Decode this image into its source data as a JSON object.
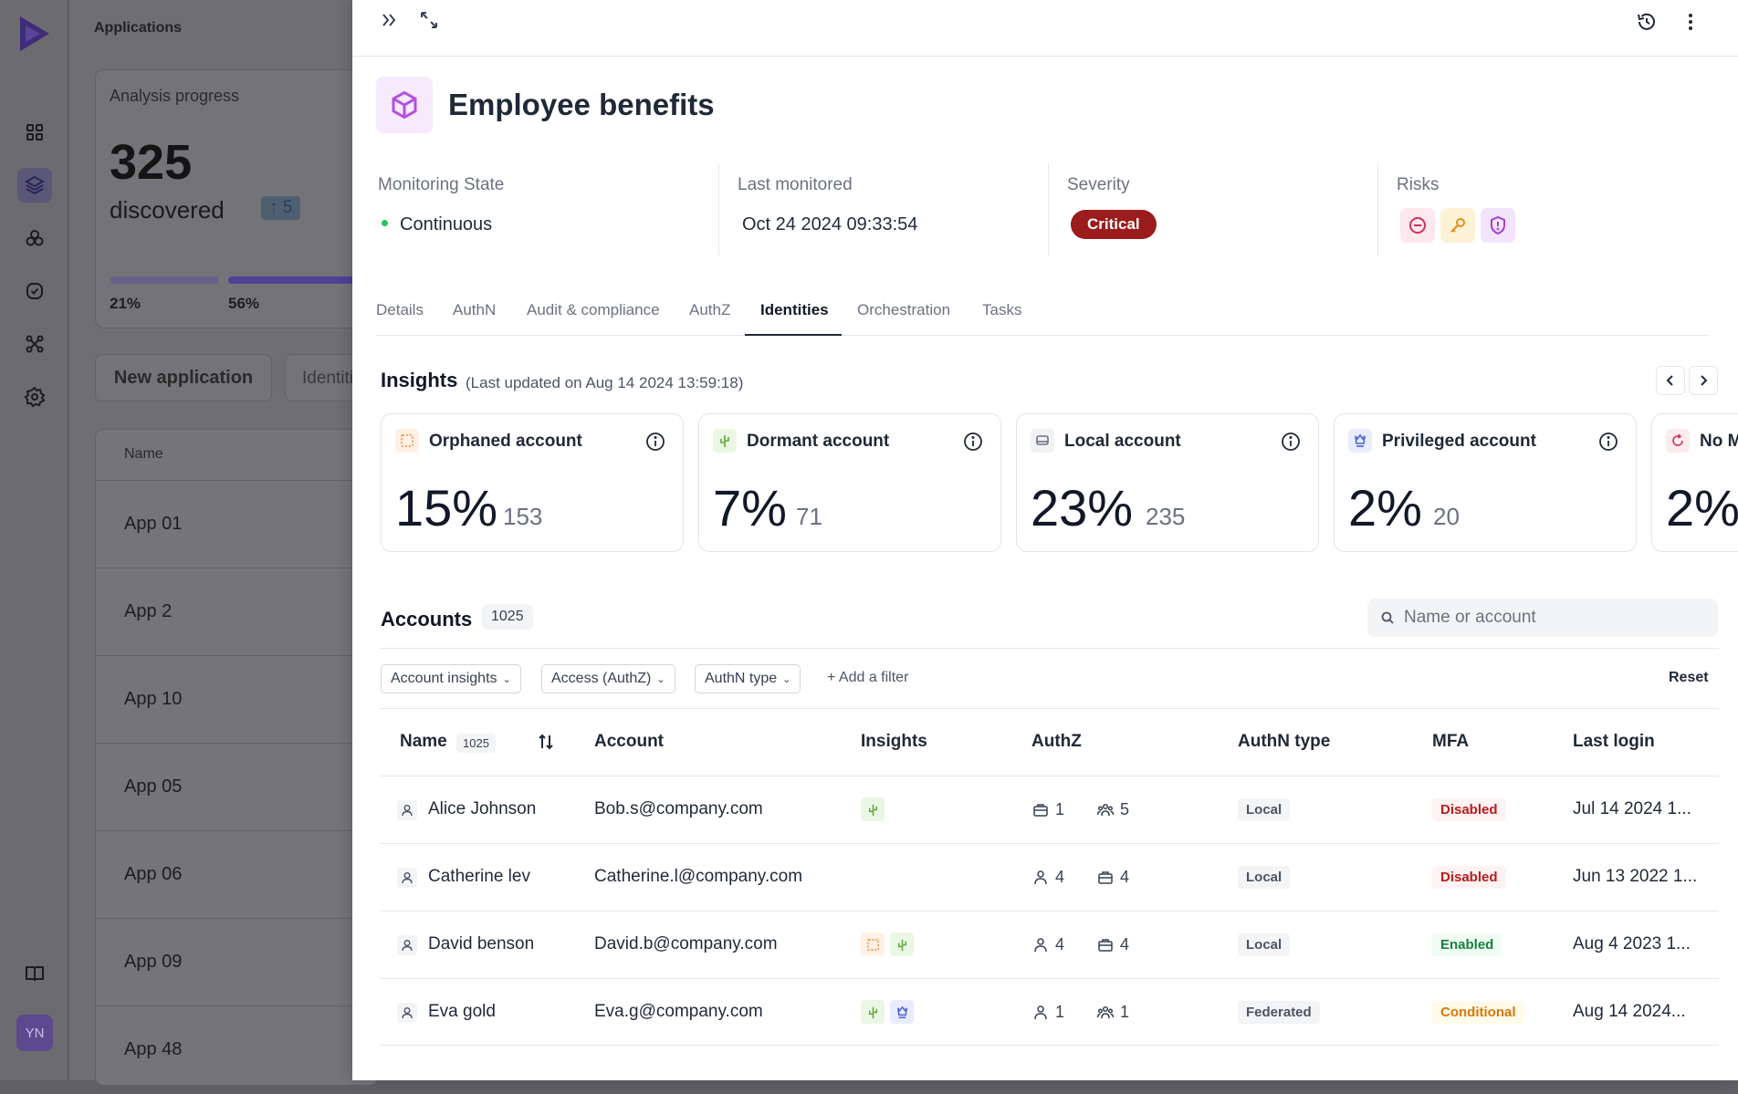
{
  "background": {
    "title": "Applications",
    "progress_card": {
      "label": "Analysis progress",
      "count": "325",
      "discovered": "discovered",
      "delta": "↑ 5",
      "pct1": "21%",
      "pct2": "56%"
    },
    "new_app_button": "New application",
    "identities_button": "Identities",
    "table_header": "Name",
    "apps": [
      "App 01",
      "App 2",
      "App 10",
      "App 05",
      "App 06",
      "App 09",
      "App 48"
    ],
    "avatar_initials": "YN"
  },
  "header": {
    "title": "Employee benefits"
  },
  "meta": {
    "monitoring_label": "Monitoring State",
    "monitoring_value": "Continuous",
    "last_monitored_label": "Last monitored",
    "last_monitored_value": "Oct 24 2024 09:33:54",
    "severity_label": "Severity",
    "severity_value": "Critical",
    "risks_label": "Risks"
  },
  "tabs": [
    "Details",
    "AuthN",
    "Audit & compliance",
    "AuthZ",
    "Identities",
    "Orchestration",
    "Tasks"
  ],
  "active_tab": "Identities",
  "insights": {
    "title": "Insights",
    "subtitle": "(Last updated on Aug 14 2024 13:59:18)",
    "cards": [
      {
        "title": "Orphaned account",
        "pct": "15%",
        "count": "153",
        "icon": "dashed-square-icon",
        "color": "#fff1e6"
      },
      {
        "title": "Dormant account",
        "pct": "7%",
        "count": "71",
        "icon": "cactus-icon",
        "color": "#eaf7e4"
      },
      {
        "title": "Local account",
        "pct": "23%",
        "count": "235",
        "icon": "local-icon",
        "color": "#f1f2f4"
      },
      {
        "title": "Privileged account",
        "pct": "2%",
        "count": "20",
        "icon": "crown-icon",
        "color": "#e8ecfc"
      },
      {
        "title": "No M",
        "pct": "2%",
        "count": "",
        "icon": "refresh-alert-icon",
        "color": "#fdecee"
      }
    ]
  },
  "accounts": {
    "title": "Accounts",
    "count": "1025",
    "search_placeholder": "Name or account",
    "filters": [
      "Account insights",
      "Access (AuthZ)",
      "AuthN type"
    ],
    "add_filter": "Add a filter",
    "reset": "Reset",
    "columns": {
      "name": "Name",
      "name_count": "1025",
      "account": "Account",
      "insights": "Insights",
      "authz": "AuthZ",
      "authn": "AuthN type",
      "mfa": "MFA",
      "last_login": "Last login"
    },
    "rows": [
      {
        "name": "Alice Johnson",
        "account": "Bob.s@company.com",
        "a1_icon": "briefcase-icon",
        "a1": "1",
        "a2_icon": "group-icon",
        "a2": "5",
        "authn": "Local",
        "mfa": "Disabled",
        "mfa_style": "red",
        "last_login": "Jul 14 2024 1..."
      },
      {
        "name": "Catherine lev",
        "account": "Catherine.l@company.com",
        "a1_icon": "person-icon",
        "a1": "4",
        "a2_icon": "briefcase-icon",
        "a2": "4",
        "authn": "Local",
        "mfa": "Disabled",
        "mfa_style": "red",
        "last_login": "Jun 13 2022 1..."
      },
      {
        "name": "David benson",
        "account": "David.b@company.com",
        "a1_icon": "person-icon",
        "a1": "4",
        "a2_icon": "briefcase-icon",
        "a2": "4",
        "authn": "Local",
        "mfa": "Enabled",
        "mfa_style": "green",
        "last_login": "Aug 4 2023 1..."
      },
      {
        "name": "Eva gold",
        "account": "Eva.g@company.com",
        "a1_icon": "person-icon",
        "a1": "1",
        "a2_icon": "group-icon",
        "a2": "1",
        "authn": "Federated",
        "mfa": "Conditional",
        "mfa_style": "amber",
        "last_login": "Aug 14 2024..."
      }
    ]
  },
  "colors": {
    "accent": "#7c3aed",
    "critical": "#9b1c1c"
  }
}
